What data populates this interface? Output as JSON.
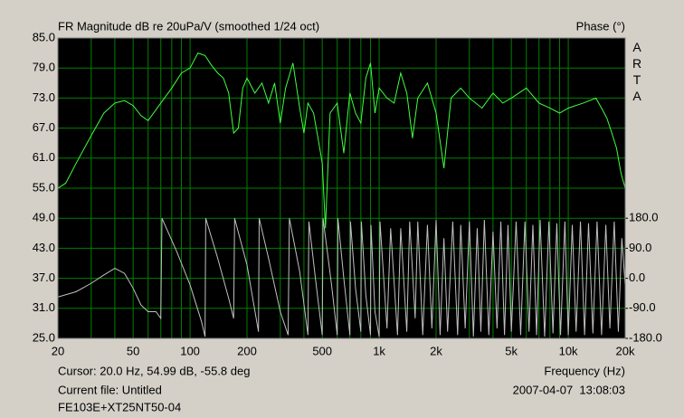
{
  "chart_data": {
    "type": "line",
    "title": "FR Magnitude dB re 20uPa/V (smoothed 1/24 oct)",
    "y2_title": "Phase (°)",
    "brand": "ARTA",
    "x_label": "Frequency (Hz)",
    "cursor": "Cursor: 20.0 Hz, 54.99 dB, -55.8 deg",
    "current_file": "Current file: Untitled",
    "timestamp": "2007-04-07  13:08:03",
    "device": "FE103E+XT25NT50-04",
    "xscale": "log",
    "grid": true,
    "background": "#000000",
    "grid_color": "#008000",
    "xlim": [
      20,
      20000
    ],
    "xticks": [
      20,
      50,
      100,
      200,
      500,
      {
        "value": 1000,
        "label": "1k"
      },
      {
        "value": 2000,
        "label": "2k"
      },
      {
        "value": 5000,
        "label": "5k"
      },
      {
        "value": 10000,
        "label": "10k"
      },
      {
        "value": 20000,
        "label": "20k"
      }
    ],
    "xminorticks": [
      30,
      40,
      60,
      70,
      80,
      90,
      300,
      400,
      600,
      700,
      800,
      900,
      3000,
      4000,
      6000,
      7000,
      8000,
      9000
    ],
    "ylim": [
      25,
      85
    ],
    "yticks": [
      {
        "value": 25,
        "label": "25.0"
      },
      {
        "value": 31,
        "label": "31.0"
      },
      {
        "value": 37,
        "label": "37.0"
      },
      {
        "value": 43,
        "label": "43.0"
      },
      {
        "value": 49,
        "label": "49.0"
      },
      {
        "value": 55,
        "label": "55.0"
      },
      {
        "value": 61,
        "label": "61.0"
      },
      {
        "value": 67,
        "label": "67.0"
      },
      {
        "value": 73,
        "label": "73.0"
      },
      {
        "value": 79,
        "label": "79.0"
      },
      {
        "value": 85,
        "label": "85.0"
      }
    ],
    "y2lim": [
      -180,
      720
    ],
    "y2ticks": [
      {
        "value": -180,
        "label": "-180.0"
      },
      {
        "value": -90,
        "label": "-90.0"
      },
      {
        "value": 0,
        "label": "0.0"
      },
      {
        "value": 90,
        "label": "90.0"
      },
      {
        "value": 180,
        "label": "180.0"
      }
    ],
    "series": [
      {
        "name": "Magnitude",
        "color": "#40ff40",
        "x": [
          20,
          22,
          25,
          30,
          35,
          40,
          45,
          50,
          55,
          60,
          70,
          80,
          90,
          100,
          110,
          120,
          130,
          140,
          150,
          160,
          170,
          180,
          190,
          200,
          220,
          240,
          260,
          280,
          300,
          320,
          350,
          380,
          400,
          420,
          450,
          480,
          500,
          520,
          550,
          600,
          650,
          700,
          750,
          800,
          850,
          900,
          950,
          1000,
          1100,
          1200,
          1300,
          1400,
          1500,
          1600,
          1800,
          2000,
          2200,
          2400,
          2700,
          3000,
          3500,
          4000,
          4500,
          5000,
          6000,
          7000,
          8000,
          9000,
          10000,
          12000,
          14000,
          15000,
          16000,
          17000,
          18000,
          19000,
          20000
        ],
        "values": [
          55,
          56,
          60,
          65.5,
          70,
          72,
          72.5,
          71.5,
          69.5,
          68.5,
          72,
          75,
          78,
          79,
          82,
          81.5,
          79.5,
          78,
          77,
          74,
          66,
          67,
          75,
          77,
          74,
          76,
          72,
          76,
          68,
          75,
          80,
          71,
          66,
          72,
          70,
          64,
          60,
          47,
          70,
          72,
          62,
          74,
          70,
          68,
          77,
          80,
          70,
          75,
          73,
          72,
          78,
          74,
          65,
          73,
          76,
          70,
          59,
          73,
          75,
          73,
          71,
          74,
          72,
          73,
          75,
          72,
          71,
          70,
          71,
          72,
          73,
          71,
          69,
          66,
          63,
          58,
          55
        ]
      },
      {
        "name": "Phase",
        "color": "#c0c0c0",
        "axis": "y2",
        "x": [
          20,
          25,
          30,
          35,
          40,
          45,
          50,
          55,
          60,
          66,
          70,
          71,
          85,
          100,
          115,
          120,
          121,
          140,
          160,
          170,
          172,
          200,
          230,
          232,
          260,
          300,
          330,
          335,
          380,
          420,
          425,
          460,
          500,
          505,
          560,
          600,
          605,
          650,
          700,
          705,
          750,
          800,
          805,
          850,
          900,
          905,
          950,
          1000,
          1010,
          1100,
          1150,
          1250,
          1300,
          1400,
          1450,
          1550,
          1600,
          1700,
          1800,
          1900,
          2000,
          2100,
          2200,
          2300,
          2450,
          2600,
          2700,
          2850,
          3000,
          3150,
          3300,
          3450,
          3600,
          3800,
          4000,
          4200,
          4400,
          4600,
          4800,
          5000,
          5300,
          5600,
          5900,
          6200,
          6500,
          6800,
          7100,
          7500,
          7900,
          8300,
          8700,
          9100,
          9600,
          10000,
          10500,
          11000,
          11600,
          12200,
          12800,
          13500,
          14200,
          15000,
          15800,
          16600,
          17500,
          18400,
          19200,
          20000
        ],
        "values": [
          -56,
          -40,
          -15,
          10,
          30,
          15,
          -30,
          -80,
          -100,
          -100,
          -120,
          180,
          80,
          -20,
          -130,
          -175,
          180,
          60,
          -60,
          -120,
          180,
          40,
          -160,
          180,
          60,
          -100,
          -170,
          180,
          20,
          -170,
          170,
          0,
          -170,
          180,
          -20,
          -170,
          180,
          0,
          -170,
          170,
          -30,
          -160,
          170,
          -50,
          -170,
          160,
          -100,
          -175,
          170,
          -150,
          150,
          -170,
          150,
          -160,
          170,
          -120,
          170,
          -170,
          160,
          -150,
          175,
          -170,
          120,
          -160,
          170,
          -170,
          160,
          -150,
          170,
          -175,
          150,
          -160,
          175,
          -170,
          140,
          -150,
          170,
          -170,
          160,
          -160,
          170,
          -170,
          170,
          -160,
          160,
          -170,
          175,
          -175,
          170,
          -165,
          165,
          -170,
          170,
          -170,
          160,
          -160,
          170,
          -170,
          165,
          -165,
          170,
          -170,
          160,
          -150,
          170,
          -160,
          120,
          -20
        ]
      }
    ]
  }
}
